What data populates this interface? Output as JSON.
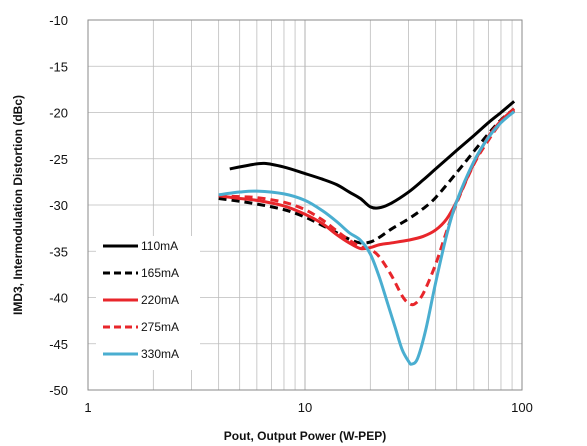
{
  "chart_data": {
    "type": "line",
    "title": "",
    "xlabel": "Pout, Output Power (W-PEP)",
    "ylabel": "IMD3, Intermodulation Distortion (dBc)",
    "x_scale": "log",
    "xlim": [
      1,
      100
    ],
    "ylim": [
      -50,
      -10
    ],
    "x_ticks": [
      "1",
      "10",
      "100"
    ],
    "y_ticks": [
      "-10",
      "-15",
      "-20",
      "-25",
      "-30",
      "-35",
      "-40",
      "-45",
      "-50"
    ],
    "grid": true,
    "legend_position": "left",
    "series": [
      {
        "name": "110mA",
        "color": "#000000",
        "dash": "solid",
        "points": [
          [
            4.5,
            -26.1
          ],
          [
            5.5,
            -25.7
          ],
          [
            6.5,
            -25.5
          ],
          [
            8,
            -25.9
          ],
          [
            10,
            -26.6
          ],
          [
            12,
            -27.2
          ],
          [
            14,
            -27.8
          ],
          [
            16,
            -28.6
          ],
          [
            18,
            -29.3
          ],
          [
            20,
            -30.2
          ],
          [
            22,
            -30.3
          ],
          [
            25,
            -29.8
          ],
          [
            30,
            -28.6
          ],
          [
            35,
            -27.3
          ],
          [
            40,
            -26.1
          ],
          [
            50,
            -24.1
          ],
          [
            60,
            -22.5
          ],
          [
            70,
            -21.1
          ],
          [
            80,
            -20.0
          ],
          [
            92,
            -18.8
          ]
        ]
      },
      {
        "name": "165mA",
        "color": "#000000",
        "dash": "dashed",
        "points": [
          [
            4,
            -29.3
          ],
          [
            5,
            -29.6
          ],
          [
            6,
            -29.9
          ],
          [
            8,
            -30.5
          ],
          [
            10,
            -31.3
          ],
          [
            12,
            -32.2
          ],
          [
            14,
            -33.0
          ],
          [
            16,
            -33.7
          ],
          [
            18,
            -34.1
          ],
          [
            20,
            -34.0
          ],
          [
            22,
            -33.5
          ],
          [
            25,
            -32.6
          ],
          [
            30,
            -31.5
          ],
          [
            35,
            -30.4
          ],
          [
            40,
            -29.2
          ],
          [
            50,
            -26.5
          ],
          [
            60,
            -24.2
          ],
          [
            70,
            -22.3
          ],
          [
            80,
            -20.8
          ],
          [
            92,
            -19.6
          ]
        ]
      },
      {
        "name": "220mA",
        "color": "#e8262b",
        "dash": "solid",
        "points": [
          [
            4,
            -29.0
          ],
          [
            5,
            -29.3
          ],
          [
            6,
            -29.5
          ],
          [
            8,
            -30.1
          ],
          [
            10,
            -31.0
          ],
          [
            12,
            -32.0
          ],
          [
            14,
            -33.2
          ],
          [
            16,
            -34.1
          ],
          [
            18,
            -34.7
          ],
          [
            20,
            -34.6
          ],
          [
            22,
            -34.3
          ],
          [
            25,
            -34.1
          ],
          [
            30,
            -33.8
          ],
          [
            35,
            -33.4
          ],
          [
            40,
            -32.7
          ],
          [
            45,
            -31.5
          ],
          [
            50,
            -29.6
          ],
          [
            60,
            -25.5
          ],
          [
            70,
            -22.6
          ],
          [
            80,
            -20.9
          ],
          [
            92,
            -19.6
          ]
        ]
      },
      {
        "name": "275mA",
        "color": "#e8262b",
        "dash": "dashed",
        "points": [
          [
            4,
            -29.0
          ],
          [
            5,
            -29.1
          ],
          [
            6,
            -29.2
          ],
          [
            8,
            -29.7
          ],
          [
            10,
            -30.5
          ],
          [
            12,
            -31.6
          ],
          [
            14,
            -32.8
          ],
          [
            16,
            -33.8
          ],
          [
            18,
            -34.5
          ],
          [
            20,
            -34.8
          ],
          [
            22,
            -35.6
          ],
          [
            25,
            -37.6
          ],
          [
            28,
            -39.8
          ],
          [
            30,
            -40.6
          ],
          [
            32,
            -40.7
          ],
          [
            35,
            -39.6
          ],
          [
            40,
            -36.4
          ],
          [
            45,
            -32.8
          ],
          [
            50,
            -29.8
          ],
          [
            60,
            -25.6
          ],
          [
            70,
            -23.0
          ],
          [
            80,
            -21.1
          ],
          [
            92,
            -19.8
          ]
        ]
      },
      {
        "name": "330mA",
        "color": "#4aaed0",
        "dash": "solid",
        "points": [
          [
            4,
            -28.9
          ],
          [
            5,
            -28.6
          ],
          [
            6,
            -28.5
          ],
          [
            8,
            -28.8
          ],
          [
            10,
            -29.5
          ],
          [
            12,
            -30.6
          ],
          [
            14,
            -31.8
          ],
          [
            16,
            -33.0
          ],
          [
            18,
            -33.8
          ],
          [
            20,
            -35.3
          ],
          [
            22,
            -37.8
          ],
          [
            24,
            -40.6
          ],
          [
            26,
            -43.2
          ],
          [
            28,
            -45.6
          ],
          [
            30,
            -46.9
          ],
          [
            31,
            -47.2
          ],
          [
            33,
            -46.6
          ],
          [
            36,
            -43.5
          ],
          [
            40,
            -38.4
          ],
          [
            45,
            -33.2
          ],
          [
            50,
            -29.6
          ],
          [
            60,
            -25.3
          ],
          [
            70,
            -22.7
          ],
          [
            80,
            -21.1
          ],
          [
            92,
            -19.9
          ]
        ]
      }
    ]
  }
}
